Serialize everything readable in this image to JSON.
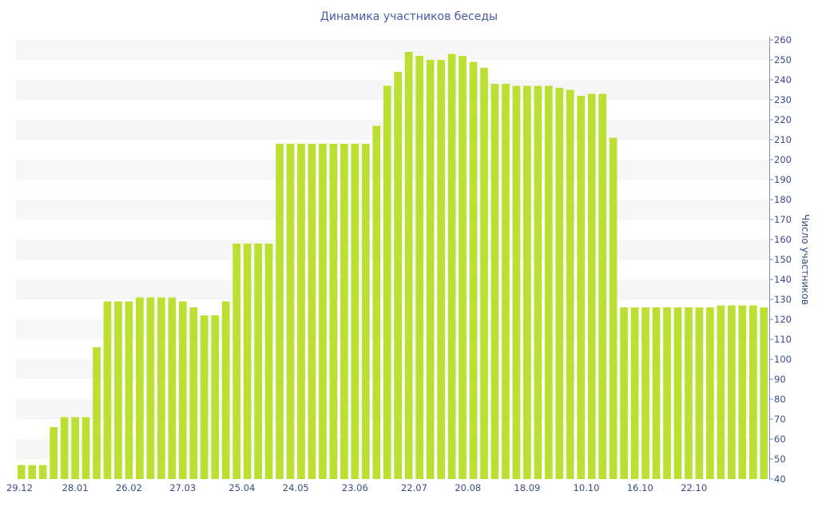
{
  "chart_data": {
    "type": "bar",
    "title": "Динамика участников беседы",
    "xlabel": "",
    "ylabel": "Число участников",
    "ylim": [
      40,
      260
    ],
    "y_ticks": [
      40,
      50,
      60,
      70,
      80,
      90,
      100,
      110,
      120,
      130,
      140,
      150,
      160,
      170,
      180,
      190,
      200,
      210,
      220,
      230,
      240,
      250,
      260
    ],
    "y_axis_side": "right",
    "grid": "alternating horizontal bands",
    "legend": "none",
    "bar_color": "#bce032",
    "x_tick_labels": [
      {
        "label": "29.12",
        "index": -0.5
      },
      {
        "label": "28.01",
        "index": 5
      },
      {
        "label": "26.02",
        "index": 10
      },
      {
        "label": "27.03",
        "index": 15
      },
      {
        "label": "25.04",
        "index": 20.5
      },
      {
        "label": "24.05",
        "index": 25.5
      },
      {
        "label": "23.06",
        "index": 31
      },
      {
        "label": "22.07",
        "index": 36.5
      },
      {
        "label": "20.08",
        "index": 41.5
      },
      {
        "label": "18.09",
        "index": 47
      },
      {
        "label": "10.10",
        "index": 52.5
      },
      {
        "label": "16.10",
        "index": 57.5
      },
      {
        "label": "22.10",
        "index": 62.5
      }
    ],
    "values": [
      47,
      47,
      47,
      66,
      71,
      71,
      71,
      106,
      129,
      129,
      129,
      131,
      131,
      131,
      131,
      129,
      126,
      122,
      122,
      129,
      158,
      158,
      158,
      158,
      208,
      208,
      208,
      208,
      208,
      208,
      208,
      208,
      208,
      217,
      237,
      244,
      254,
      252,
      250,
      250,
      253,
      252,
      249,
      246,
      238,
      238,
      237,
      237,
      237,
      237,
      236,
      235,
      232,
      233,
      233,
      211,
      126,
      126,
      126,
      126,
      126,
      126,
      126,
      126,
      126,
      127,
      127,
      127,
      127,
      126
    ]
  }
}
